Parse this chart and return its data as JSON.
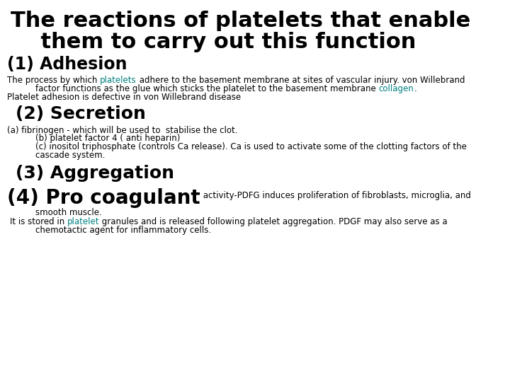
{
  "background_color": "#ffffff",
  "title_line1": "The reactions of platelets that enable",
  "title_line2": "    them to carry out this function",
  "title_fontsize": 22,
  "title_color": "#000000",
  "section1_header": "(1) Adhesion",
  "section1_header_fontsize": 17,
  "section2_header": "(2) Secretion",
  "section2_header_fontsize": 18,
  "section3_header": "(3) Aggregation",
  "section3_header_fontsize": 18,
  "section4_header": "(4) Pro coagulant",
  "section4_header_fontsize": 20,
  "section4_inline": " activity-PDFG induces proliferation of fibroblasts, microglia, and",
  "link_color": "#008080",
  "text_color": "#000000",
  "small_fontsize": 8.5,
  "body_indent_fontsize": 8.5
}
